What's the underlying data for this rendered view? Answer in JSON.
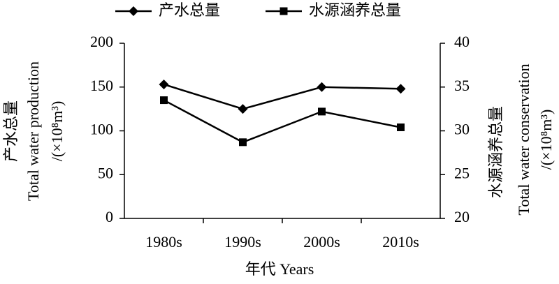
{
  "chart_data": {
    "type": "line",
    "categories": [
      "1980s",
      "1990s",
      "2000s",
      "2010s"
    ],
    "series": [
      {
        "name": "产水总量",
        "color": "#000000",
        "marker": "diamond",
        "values": [
          153,
          125,
          150,
          148
        ]
      },
      {
        "name": "水源涵养总量",
        "color": "#000000",
        "marker": "square",
        "axis": "y2",
        "values": [
          33.5,
          28.7,
          32.2,
          30.4
        ]
      }
    ],
    "ylim": [
      0,
      200
    ],
    "yticks": [
      0,
      50,
      100,
      150,
      200
    ],
    "y2lim": [
      20,
      40
    ],
    "y2ticks": [
      20,
      25,
      30,
      35,
      40
    ],
    "y_label": [
      "产水总量",
      "Total water production",
      "/(×10⁸m³)"
    ],
    "y2_label": [
      "水源涵养总量",
      "Total water conservation",
      "/(×10⁸m³)"
    ],
    "x_label": "年代 Years",
    "grid": false
  }
}
